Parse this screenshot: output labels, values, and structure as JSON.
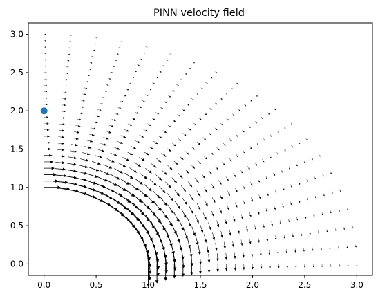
{
  "chart_data": {
    "type": "quiver",
    "title": "PINN velocity field",
    "xlabel": "",
    "ylabel": "",
    "xlim": [
      -0.15,
      3.15
    ],
    "ylim": [
      -0.15,
      3.15
    ],
    "xticks": [
      "0.0",
      "0.5",
      "1.0",
      "1.5",
      "2.0",
      "2.5",
      "3.0"
    ],
    "yticks": [
      "0.0",
      "0.5",
      "1.0",
      "1.5",
      "2.0",
      "2.5",
      "3.0"
    ],
    "grid": false,
    "field": {
      "description_of_grid": "polar sampling of quarter annulus",
      "r_min": 1.0,
      "r_max": 3.0,
      "theta_min_deg": 0,
      "theta_max_deg": 90,
      "theta_count": 20,
      "r_count": 25,
      "arrow_color": "#000000"
    },
    "points": [
      {
        "x": 0.0,
        "y": 2.0,
        "color": "#1f77b4"
      }
    ]
  }
}
